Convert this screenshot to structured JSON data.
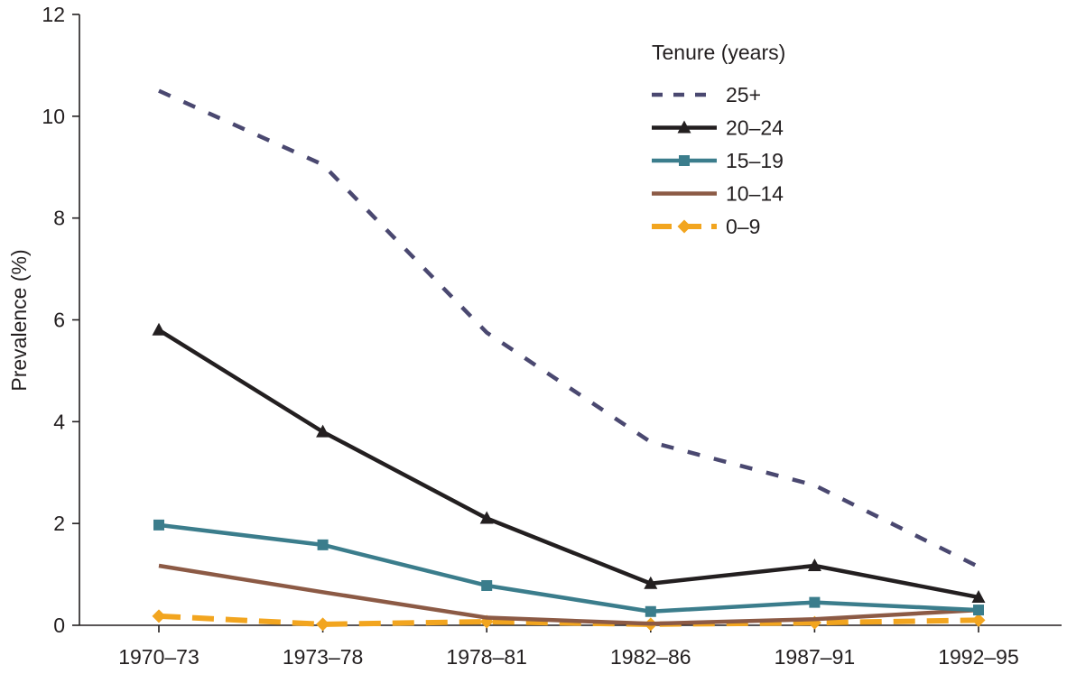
{
  "chart_data": {
    "type": "line",
    "title": "",
    "xlabel": "",
    "ylabel": "Prevalence (%)",
    "categories": [
      "1970–73",
      "1973–78",
      "1978–81",
      "1982–86",
      "1987–91",
      "1992–95"
    ],
    "ylim": [
      0,
      12
    ],
    "yticks": [
      "0",
      "2",
      "4",
      "6",
      "8",
      "10",
      "12"
    ],
    "grid": false,
    "legend": {
      "title": "Tenure (years)",
      "placement": "top-right"
    },
    "series": [
      {
        "name": "25+",
        "values": [
          10.5,
          9.05,
          5.75,
          3.6,
          2.75,
          1.15
        ],
        "color": "#4a4870",
        "style": "dotted",
        "marker": "none"
      },
      {
        "name": "20–24",
        "values": [
          5.8,
          3.8,
          2.1,
          0.82,
          1.17,
          0.55
        ],
        "color": "#231f20",
        "style": "solid",
        "marker": "triangle"
      },
      {
        "name": "15–19",
        "values": [
          1.97,
          1.58,
          0.78,
          0.27,
          0.45,
          0.3
        ],
        "color": "#3b7d8c",
        "style": "solid",
        "marker": "square"
      },
      {
        "name": "10–14",
        "values": [
          1.17,
          0.65,
          0.15,
          0.03,
          0.12,
          0.3
        ],
        "color": "#8c5a45",
        "style": "solid",
        "marker": "none"
      },
      {
        "name": "0–9",
        "values": [
          0.18,
          0.02,
          0.07,
          0.02,
          0.05,
          0.1
        ],
        "color": "#f2a51f",
        "style": "dashed",
        "marker": "diamond"
      }
    ]
  }
}
